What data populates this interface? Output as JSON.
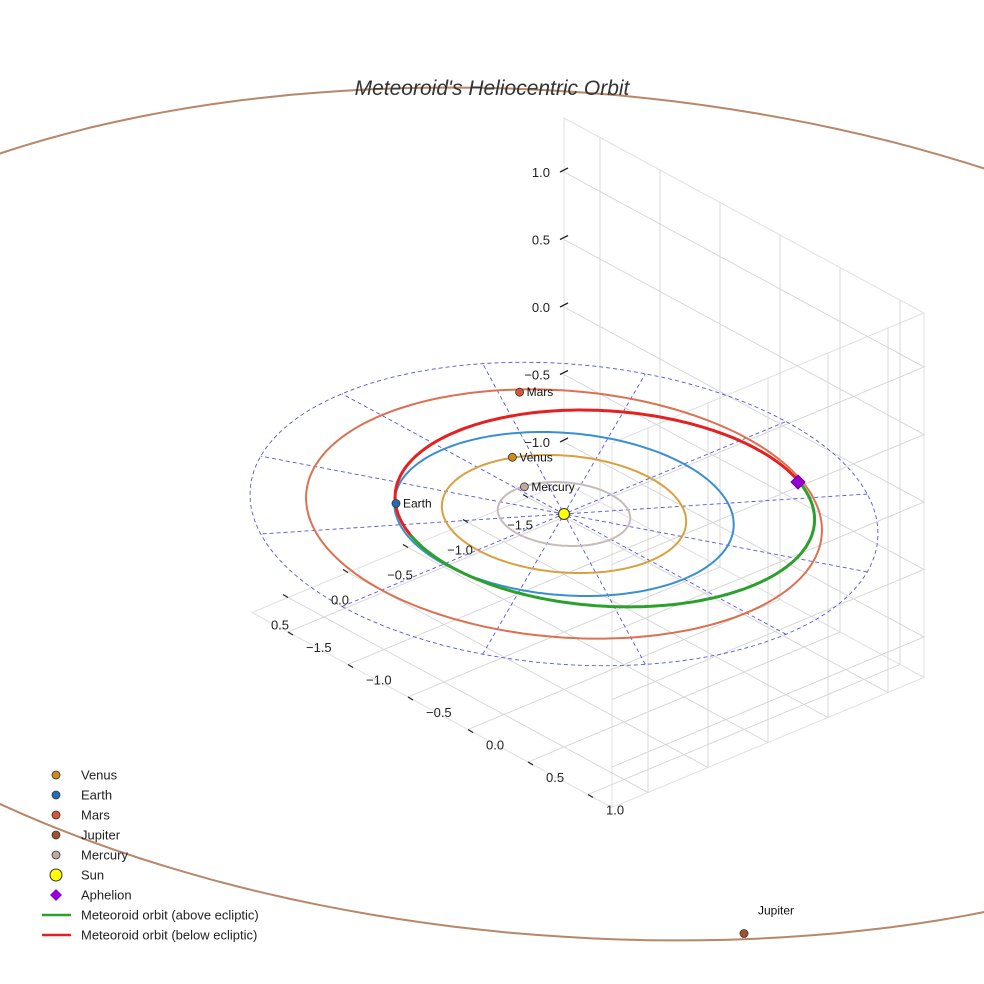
{
  "chart_data": {
    "type": "3d-line",
    "title": "Meteoroid's Heliocentric Orbit",
    "xlim": [
      -1.8,
      0.8
    ],
    "ylim": [
      -1.8,
      1.2
    ],
    "zlim": [
      -1.3,
      1.4
    ],
    "x_ticks": [
      "−1.5",
      "−1.0",
      "−0.5",
      "0.0",
      "0.5"
    ],
    "y_ticks": [
      "−1.5",
      "−1.0",
      "−0.5",
      "0.0",
      "0.5",
      "1.0"
    ],
    "z_ticks": [
      "1.0",
      "0.5",
      "0.0",
      "−0.5",
      "−1.0"
    ],
    "planets": [
      {
        "name": "Mercury",
        "orbit_radius_au": 0.39,
        "position": [
          -0.05,
          -0.38,
          0.0
        ],
        "color": "#c0aaa0",
        "orbit_color": "#c6bcb8"
      },
      {
        "name": "Venus",
        "orbit_radius_au": 0.72,
        "position": [
          -0.25,
          -0.68,
          0.0
        ],
        "color": "#d08a1c",
        "orbit_color": "#d8a040"
      },
      {
        "name": "Earth",
        "orbit_radius_au": 1.0,
        "position": [
          0.7,
          -0.7,
          0.0
        ],
        "color": "#1f6fb8",
        "orbit_color": "#3a8fd0"
      },
      {
        "name": "Mars",
        "orbit_radius_au": 1.52,
        "position": [
          -0.85,
          -1.22,
          0.0
        ],
        "color": "#d8553a",
        "orbit_color": "#dd7050"
      },
      {
        "name": "Jupiter",
        "orbit_radius_au": 5.2,
        "position": [
          2.8,
          4.3,
          0.0
        ],
        "color": "#a0522d",
        "orbit_color": "#b8876a"
      }
    ],
    "sun": {
      "name": "Sun",
      "position": [
        0,
        0,
        0
      ],
      "color": "#ffff00"
    },
    "aphelion": {
      "name": "Aphelion",
      "position": [
        -1.38,
        0.57,
        0.0
      ],
      "color": "#9400d3"
    },
    "meteoroid_orbit": {
      "semi_major_axis_au": 1.24,
      "eccentricity": 0.21,
      "inclination_deg": 2,
      "perihelion_longitude_deg": -22.5,
      "above_color": "#2ca02c",
      "below_color": "#e62020"
    },
    "reference_circle_radius_au": 1.85,
    "legend": {
      "placement": "bottom-left",
      "entries": [
        {
          "label": "Venus",
          "marker": "dot",
          "color": "#d08a1c"
        },
        {
          "label": "Earth",
          "marker": "dot",
          "color": "#1f6fb8"
        },
        {
          "label": "Mars",
          "marker": "dot",
          "color": "#d8553a"
        },
        {
          "label": "Jupiter",
          "marker": "dot",
          "color": "#a0522d"
        },
        {
          "label": "Mercury",
          "marker": "dot",
          "color": "#c0aaa0"
        },
        {
          "label": "Sun",
          "marker": "sun",
          "color": "#ffff00"
        },
        {
          "label": "Aphelion",
          "marker": "diamond",
          "color": "#9400d3"
        },
        {
          "label": "Meteoroid orbit (above ecliptic)",
          "marker": "line",
          "color": "#2ca02c"
        },
        {
          "label": "Meteoroid orbit (below ecliptic)",
          "marker": "line",
          "color": "#e62020"
        }
      ]
    }
  }
}
